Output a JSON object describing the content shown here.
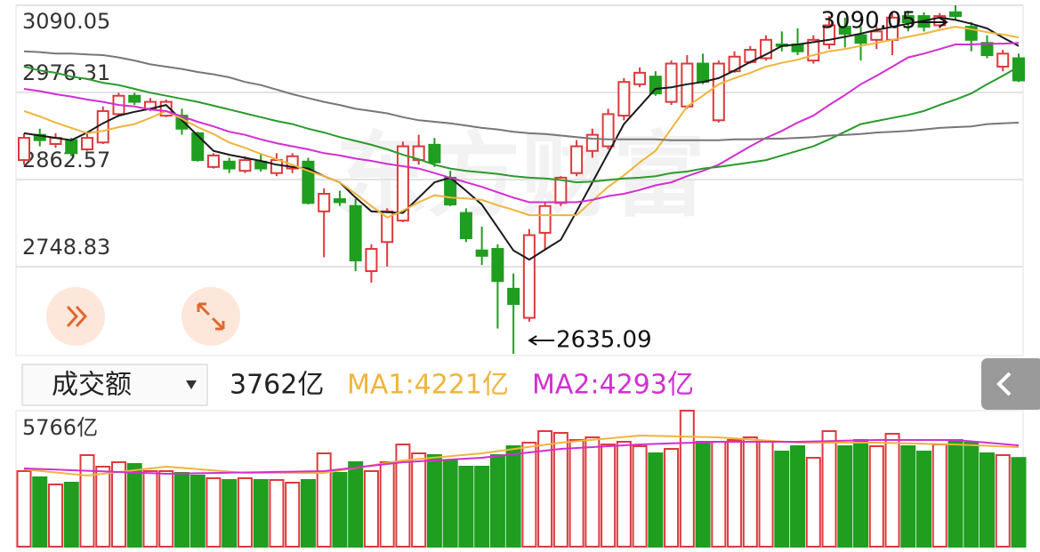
{
  "chart_data": [
    {
      "type": "candlestick",
      "watermark": "东方财富",
      "categories": [
        null,
        null,
        null,
        null,
        null,
        null,
        null,
        null,
        null,
        null,
        null,
        null,
        null,
        null,
        null,
        null,
        null,
        null,
        null,
        null,
        null,
        null,
        null,
        null,
        null,
        null,
        null,
        null,
        null,
        null,
        null,
        null,
        null,
        null,
        null,
        null,
        null,
        null,
        null,
        null,
        null,
        null,
        null,
        null,
        null,
        null,
        null,
        null,
        null,
        null,
        null,
        null,
        null,
        null,
        null,
        null,
        null,
        null,
        null,
        null,
        null,
        null,
        null,
        null
      ],
      "open": [
        2888,
        2921,
        2909,
        2914,
        2902,
        2911,
        2948,
        2972,
        2955,
        2946,
        2946,
        2923,
        2879,
        2886,
        2874,
        2886,
        2871,
        2877,
        2886,
        2821,
        2837,
        2828,
        2743,
        2781,
        2809,
        2888,
        2908,
        2865,
        2819,
        2770,
        2772,
        2720,
        2682,
        2793,
        2832,
        2871,
        2900,
        2906,
        2946,
        2987,
        2997,
        2964,
        2958,
        3014,
        2940,
        3004,
        3016,
        3021,
        3039,
        3039,
        3018,
        3039,
        3062,
        3051,
        3045,
        3045,
        3076,
        3076,
        3064,
        3081,
        3062,
        3041,
        3010,
        3021
      ],
      "high": [
        2923,
        2929,
        2923,
        2917,
        2923,
        2958,
        2976,
        2976,
        2969,
        2967,
        2955,
        2925,
        2897,
        2891,
        2893,
        2897,
        2897,
        2897,
        2891,
        2851,
        2848,
        2837,
        2778,
        2825,
        2912,
        2921,
        2917,
        2874,
        2825,
        2801,
        2778,
        2740,
        2798,
        2832,
        2867,
        2914,
        2929,
        2955,
        2995,
        3009,
        3004,
        3018,
        3025,
        3027,
        3018,
        3030,
        3037,
        3051,
        3056,
        3060,
        3051,
        3076,
        3074,
        3062,
        3064,
        3081,
        3083,
        3081,
        3080,
        3090.05,
        3068,
        3051,
        3032,
        3027
      ],
      "low": [
        2882,
        2906,
        2904,
        2893,
        2900,
        2909,
        2946,
        2960,
        2952,
        2944,
        2921,
        2886,
        2877,
        2871,
        2871,
        2873,
        2867,
        2871,
        2830,
        2761,
        2828,
        2743,
        2728,
        2749,
        2807,
        2882,
        2879,
        2828,
        2781,
        2751,
        2668,
        2635.09,
        2677,
        2772,
        2828,
        2867,
        2891,
        2902,
        2940,
        2983,
        2972,
        2960,
        2955,
        2987,
        2937,
        3002,
        3014,
        3018,
        3030,
        3025,
        3014,
        3033,
        3035,
        3018,
        3033,
        3025,
        3056,
        3056,
        3060,
        3072,
        3030,
        3021,
        3004,
        2990
      ],
      "close": [
        2917,
        2914,
        2917,
        2897,
        2917,
        2952,
        2972,
        2964,
        2964,
        2964,
        2929,
        2888,
        2894,
        2877,
        2888,
        2877,
        2888,
        2893,
        2832,
        2844,
        2833,
        2757,
        2772,
        2821,
        2906,
        2906,
        2885,
        2830,
        2786,
        2763,
        2730,
        2700,
        2790,
        2828,
        2865,
        2906,
        2921,
        2948,
        2990,
        3002,
        2975,
        3014,
        3014,
        2990,
        3014,
        3023,
        3032,
        3045,
        3037,
        3030,
        3045,
        3064,
        3053,
        3041,
        3056,
        3074,
        3068,
        3062,
        3076,
        3076,
        3045,
        3025,
        3027,
        2992
      ],
      "up_color": "#dc3a3c",
      "down_color": "#1f9e1f",
      "series": [
        {
          "color": "#1a1a1a",
          "values": [
            2923,
            2920,
            2917,
            2914,
            2924,
            2936,
            2946,
            2951,
            2955,
            2960,
            2940,
            2920,
            2900,
            2895,
            2891,
            2887,
            2882,
            2879,
            2877,
            2867,
            2859,
            2839,
            2821,
            2820,
            2819,
            2839,
            2859,
            2865,
            2848,
            2830,
            2800,
            2770,
            2758,
            2771,
            2784,
            2821,
            2859,
            2897,
            2935,
            2958,
            2981,
            2983,
            2987,
            2990,
            2995,
            3005,
            3016,
            3026,
            3037,
            3039,
            3042,
            3045,
            3049,
            3053,
            3058,
            3062,
            3066,
            3070,
            3074,
            3071,
            3066,
            3060,
            3048,
            3037
          ]
        },
        {
          "color": "#f0b43c",
          "values": [
            2952,
            2945,
            2937,
            2930,
            2923,
            2926,
            2931,
            2935,
            2943,
            2952,
            2942,
            2931,
            2922,
            2911,
            2904,
            2896,
            2889,
            2882,
            2874,
            2867,
            2859,
            2844,
            2828,
            2813,
            2822,
            2833,
            2842,
            2839,
            2838,
            2836,
            2829,
            2823,
            2816,
            2816,
            2816,
            2816,
            2835,
            2853,
            2868,
            2885,
            2900,
            2929,
            2958,
            2972,
            2987,
            2995,
            3002,
            3010,
            3015,
            3019,
            3025,
            3030,
            3033,
            3037,
            3041,
            3045,
            3049,
            3053,
            3058,
            3062,
            3059,
            3055,
            3052,
            3048
          ]
        },
        {
          "color": "#d22fd2",
          "values": [
            2981,
            2978,
            2974,
            2971,
            2967,
            2964,
            2960,
            2958,
            2954,
            2952,
            2945,
            2938,
            2932,
            2925,
            2921,
            2915,
            2910,
            2906,
            2902,
            2897,
            2894,
            2890,
            2887,
            2883,
            2880,
            2877,
            2871,
            2865,
            2859,
            2853,
            2846,
            2839,
            2833,
            2833,
            2833,
            2833,
            2836,
            2841,
            2844,
            2849,
            2855,
            2859,
            2867,
            2874,
            2882,
            2894,
            2906,
            2917,
            2926,
            2937,
            2946,
            2960,
            2973,
            2987,
            2998,
            3010,
            3022,
            3027,
            3033,
            3039,
            3039,
            3040,
            3040,
            3041
          ]
        },
        {
          "color": "#2b9a2b",
          "values": [
            3010,
            3005,
            3002,
            2997,
            2994,
            2989,
            2986,
            2981,
            2976,
            2972,
            2968,
            2964,
            2959,
            2954,
            2949,
            2944,
            2939,
            2935,
            2929,
            2924,
            2918,
            2913,
            2908,
            2902,
            2895,
            2889,
            2882,
            2877,
            2874,
            2872,
            2870,
            2867,
            2865,
            2864,
            2862,
            2859,
            2860,
            2862,
            2864,
            2865,
            2867,
            2871,
            2873,
            2877,
            2879,
            2882,
            2885,
            2888,
            2894,
            2900,
            2906,
            2915,
            2925,
            2935,
            2939,
            2943,
            2947,
            2952,
            2960,
            2967,
            2975,
            2987,
            2998,
            3010
          ]
        },
        {
          "color": "#777777",
          "values": [
            3030,
            3029,
            3027,
            3027,
            3026,
            3025,
            3022,
            3018,
            3013,
            3010,
            3007,
            3003,
            3000,
            2996,
            2990,
            2986,
            2980,
            2974,
            2969,
            2964,
            2960,
            2955,
            2952,
            2949,
            2944,
            2940,
            2938,
            2936,
            2933,
            2930,
            2928,
            2925,
            2923,
            2922,
            2920,
            2918,
            2916,
            2915,
            2915,
            2915,
            2915,
            2914,
            2914,
            2914,
            2914,
            2915,
            2915,
            2916,
            2916,
            2917,
            2918,
            2920,
            2921,
            2922,
            2924,
            2925,
            2926,
            2928,
            2930,
            2931,
            2932,
            2935,
            2936,
            2937
          ]
        }
      ],
      "ylim": [
        2635.09,
        3090.05
      ],
      "yticks": [
        3090.05,
        2976.31,
        2862.57,
        2748.83
      ],
      "grid": true,
      "annotations": [
        {
          "x": 59,
          "value": 3090.05
        },
        {
          "x": 31,
          "value": 2635.09
        }
      ]
    },
    {
      "type": "bar",
      "selector": "成交额",
      "legend": [
        "3762亿",
        "MA1:4221亿",
        "MA2:4293亿"
      ],
      "values": [
        3204,
        2940,
        2638,
        2714,
        3882,
        3392,
        3581,
        3505,
        3204,
        3204,
        3128,
        3015,
        2902,
        2827,
        2902,
        2827,
        2827,
        2714,
        2827,
        3957,
        3128,
        3581,
        3204,
        3581,
        4334,
        3957,
        3882,
        3656,
        3392,
        3392,
        3882,
        4259,
        4410,
        4900,
        4824,
        4523,
        4636,
        4334,
        4447,
        4259,
        3957,
        4146,
        5766,
        4447,
        4447,
        4523,
        4636,
        4447,
        4033,
        4259,
        3769,
        4900,
        4259,
        4523,
        4259,
        4787,
        4259,
        4033,
        4334,
        4523,
        4410,
        3957,
        3882,
        3762
      ],
      "series": [
        {
          "color": "#f0b43c",
          "values": [
            3279,
            3213,
            3147,
            3081,
            3015,
            3090,
            3166,
            3241,
            3317,
            3392,
            3339,
            3286,
            3234,
            3181,
            3128,
            3128,
            3128,
            3128,
            3128,
            3128,
            3234,
            3339,
            3445,
            3550,
            3656,
            3716,
            3776,
            3837,
            3897,
            3957,
            4048,
            4138,
            4229,
            4319,
            4410,
            4470,
            4530,
            4591,
            4651,
            4711,
            4696,
            4681,
            4666,
            4651,
            4636,
            4591,
            4546,
            4500,
            4455,
            4410,
            4410,
            4410,
            4410,
            4410,
            4410,
            4395,
            4380,
            4364,
            4349,
            4334,
            4306,
            4278,
            4249,
            4221
          ]
        },
        {
          "color": "#d22fd2",
          "values": [
            3317,
            3292,
            3267,
            3242,
            3217,
            3192,
            3166,
            3141,
            3116,
            3091,
            3102,
            3114,
            3125,
            3136,
            3148,
            3159,
            3170,
            3181,
            3193,
            3204,
            3279,
            3355,
            3430,
            3506,
            3581,
            3619,
            3656,
            3694,
            3731,
            3769,
            3844,
            3920,
            3995,
            4071,
            4146,
            4184,
            4221,
            4259,
            4296,
            4334,
            4357,
            4379,
            4402,
            4424,
            4447,
            4447,
            4447,
            4447,
            4447,
            4447,
            4462,
            4477,
            4493,
            4508,
            4523,
            4523,
            4523,
            4523,
            4523,
            4523,
            4466,
            4408,
            4351,
            4293
          ]
        }
      ],
      "ylim": [
        0,
        5766
      ],
      "yticks": [
        {
          "value": 5766,
          "label": "5766亿"
        }
      ]
    }
  ]
}
